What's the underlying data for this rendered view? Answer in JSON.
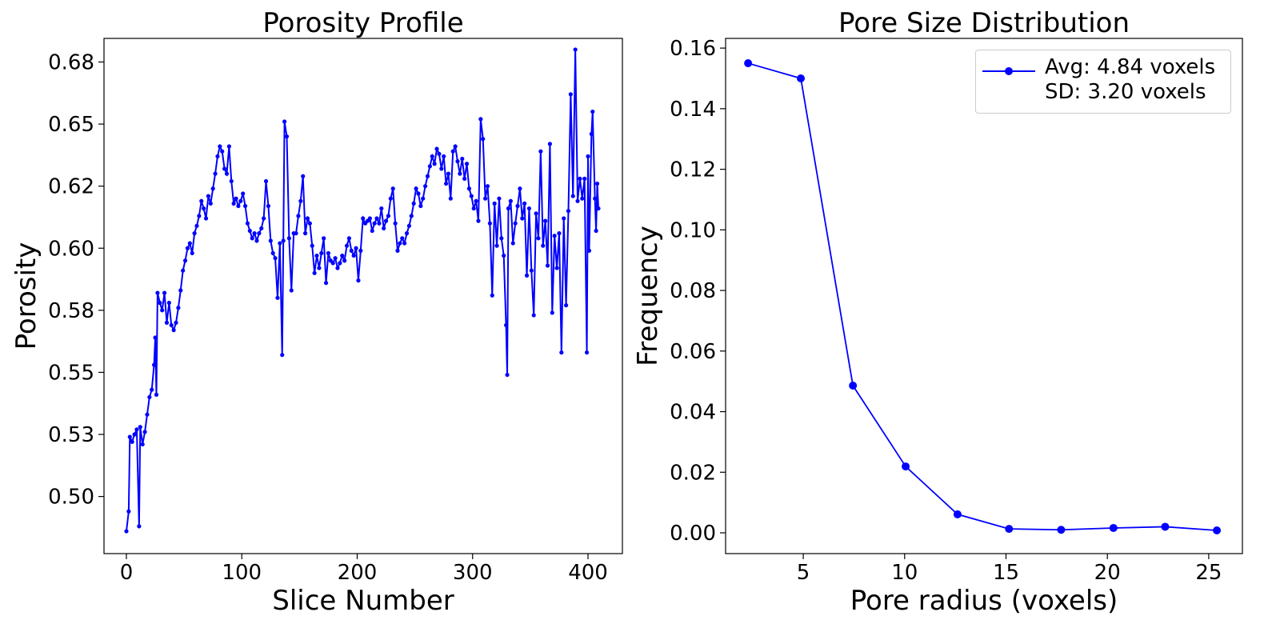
{
  "chart_data": [
    {
      "type": "line",
      "title": "Porosity Profile",
      "xlabel": "Slice Number",
      "ylabel": "Porosity",
      "x": [
        0,
        2,
        3,
        5,
        7,
        9,
        11,
        12,
        14,
        16,
        18,
        20,
        22,
        24,
        25,
        26,
        27,
        29,
        31,
        33,
        35,
        37,
        39,
        41,
        43,
        45,
        47,
        49,
        51,
        53,
        55,
        57,
        59,
        61,
        63,
        65,
        67,
        69,
        71,
        73,
        75,
        77,
        79,
        81,
        83,
        85,
        87,
        89,
        91,
        93,
        95,
        97,
        99,
        101,
        103,
        105,
        107,
        109,
        111,
        113,
        115,
        117,
        119,
        121,
        123,
        125,
        127,
        129,
        131,
        133,
        135,
        136,
        137,
        139,
        141,
        143,
        145,
        147,
        149,
        151,
        153,
        155,
        157,
        159,
        161,
        163,
        165,
        167,
        169,
        171,
        173,
        175,
        177,
        179,
        181,
        183,
        185,
        187,
        189,
        191,
        193,
        195,
        197,
        199,
        201,
        203,
        205,
        207,
        209,
        211,
        213,
        215,
        217,
        219,
        221,
        223,
        225,
        227,
        229,
        231,
        233,
        235,
        237,
        239,
        241,
        243,
        245,
        247,
        249,
        251,
        253,
        255,
        257,
        259,
        261,
        263,
        265,
        267,
        269,
        271,
        273,
        275,
        277,
        279,
        281,
        283,
        285,
        287,
        289,
        291,
        293,
        295,
        297,
        299,
        301,
        303,
        305,
        307,
        309,
        311,
        313,
        315,
        317,
        319,
        321,
        323,
        325,
        327,
        329,
        330,
        331,
        333,
        335,
        337,
        339,
        341,
        343,
        345,
        347,
        349,
        351,
        353,
        355,
        357,
        359,
        361,
        363,
        365,
        367,
        369,
        371,
        373,
        375,
        377,
        379,
        381,
        383,
        385,
        387,
        389,
        391,
        393,
        395,
        397,
        399,
        400,
        401,
        403,
        404,
        406,
        407,
        408,
        409
      ],
      "series": [
        {
          "color": "#0000ff",
          "values": [
            0.486,
            0.494,
            0.524,
            0.522,
            0.525,
            0.527,
            0.488,
            0.528,
            0.521,
            0.526,
            0.533,
            0.54,
            0.543,
            0.553,
            0.564,
            0.541,
            0.582,
            0.578,
            0.575,
            0.582,
            0.57,
            0.578,
            0.569,
            0.567,
            0.57,
            0.576,
            0.583,
            0.591,
            0.595,
            0.6,
            0.602,
            0.598,
            0.606,
            0.609,
            0.613,
            0.619,
            0.616,
            0.612,
            0.621,
            0.618,
            0.624,
            0.63,
            0.637,
            0.641,
            0.639,
            0.632,
            0.63,
            0.641,
            0.627,
            0.618,
            0.62,
            0.617,
            0.619,
            0.622,
            0.617,
            0.61,
            0.607,
            0.604,
            0.606,
            0.603,
            0.606,
            0.608,
            0.612,
            0.627,
            0.617,
            0.603,
            0.598,
            0.596,
            0.58,
            0.602,
            0.557,
            0.603,
            0.651,
            0.645,
            0.604,
            0.583,
            0.606,
            0.606,
            0.613,
            0.619,
            0.629,
            0.606,
            0.612,
            0.61,
            0.601,
            0.59,
            0.597,
            0.592,
            0.598,
            0.604,
            0.586,
            0.598,
            0.595,
            0.594,
            0.596,
            0.592,
            0.594,
            0.597,
            0.595,
            0.601,
            0.604,
            0.599,
            0.597,
            0.6,
            0.587,
            0.599,
            0.612,
            0.61,
            0.611,
            0.612,
            0.607,
            0.61,
            0.612,
            0.61,
            0.616,
            0.608,
            0.611,
            0.613,
            0.62,
            0.624,
            0.61,
            0.599,
            0.602,
            0.604,
            0.602,
            0.606,
            0.609,
            0.613,
            0.618,
            0.624,
            0.622,
            0.617,
            0.62,
            0.625,
            0.629,
            0.633,
            0.637,
            0.634,
            0.64,
            0.638,
            0.632,
            0.637,
            0.626,
            0.63,
            0.62,
            0.639,
            0.641,
            0.635,
            0.63,
            0.636,
            0.628,
            0.634,
            0.624,
            0.621,
            0.616,
            0.619,
            0.611,
            0.652,
            0.644,
            0.62,
            0.625,
            0.61,
            0.581,
            0.618,
            0.601,
            0.62,
            0.604,
            0.597,
            0.569,
            0.549,
            0.616,
            0.619,
            0.602,
            0.61,
            0.617,
            0.624,
            0.612,
            0.618,
            0.589,
            0.616,
            0.591,
            0.573,
            0.614,
            0.604,
            0.639,
            0.601,
            0.611,
            0.593,
            0.642,
            0.574,
            0.605,
            0.592,
            0.606,
            0.558,
            0.612,
            0.577,
            0.615,
            0.662,
            0.621,
            0.68,
            0.619,
            0.628,
            0.62,
            0.628,
            0.558,
            0.637,
            0.599,
            0.646,
            0.655,
            0.62,
            0.607,
            0.626,
            0.616
          ]
        }
      ],
      "xlim": [
        -19.4,
        429.8
      ],
      "ylim": [
        0.477,
        0.6845
      ],
      "xticks": [
        0,
        100,
        200,
        300,
        400
      ],
      "yticks": [
        {
          "value": 0.5,
          "label": "0.50"
        },
        {
          "value": 0.525,
          "label": "0.53"
        },
        0.55,
        {
          "value": 0.575,
          "label": "0.58"
        },
        {
          "value": 0.6,
          "label": "0.60"
        },
        {
          "value": 0.625,
          "label": "0.62"
        },
        0.65,
        {
          "value": 0.675,
          "label": "0.68"
        }
      ]
    },
    {
      "type": "line",
      "title": "Pore Size Distribution",
      "xlabel": "Pore radius (voxels)",
      "ylabel": "Frequency",
      "x": [
        2.28,
        4.88,
        7.45,
        10.05,
        12.61,
        15.15,
        17.72,
        20.3,
        22.85,
        25.4
      ],
      "series": [
        {
          "name": "Avg: 4.84 voxels\nSD: 3.20 voxels",
          "color": "#0000ff",
          "values": [
            0.155,
            0.15,
            0.0486,
            0.0219,
            0.0061,
            0.0013,
            0.001,
            0.0016,
            0.002,
            0.0008
          ]
        }
      ],
      "xlim": [
        1.17,
        26.66
      ],
      "ylim": [
        -0.00686,
        0.1632
      ],
      "xticks": [
        5,
        10,
        15,
        20,
        25
      ],
      "yticks": [
        {
          "value": 0,
          "label": "0.00"
        },
        0.02,
        0.04,
        0.06,
        0.08,
        {
          "value": 0.1,
          "label": "0.10"
        },
        0.12,
        0.14,
        0.16
      ],
      "legend": "upper right"
    }
  ]
}
